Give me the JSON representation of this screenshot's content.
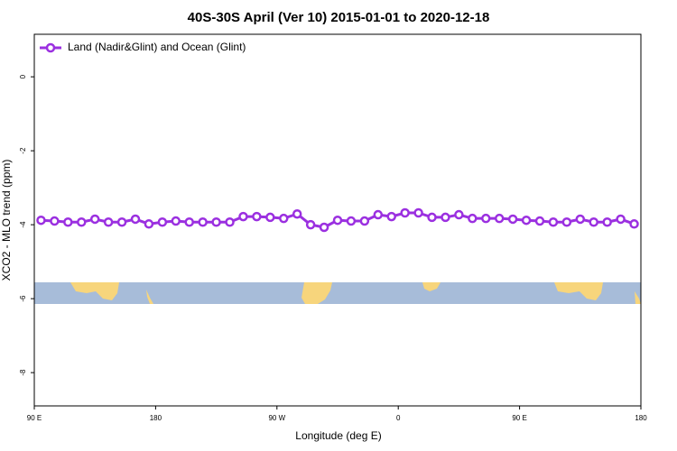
{
  "chart_data": {
    "type": "line",
    "title": "40S-30S April (Ver 10)   2015-01-01 to 2020-12-18",
    "xlabel": "Longitude (deg E)",
    "ylabel": "XCO2 - MLO trend (ppm)",
    "xlim": [
      90,
      540
    ],
    "ylim": [
      -8.9,
      1.15
    ],
    "xticks": [
      {
        "value": 90,
        "label": "90 E"
      },
      {
        "value": 180,
        "label": "180"
      },
      {
        "value": 270,
        "label": "90 W"
      },
      {
        "value": 360,
        "label": "0"
      },
      {
        "value": 450,
        "label": "90 E"
      },
      {
        "value": 540,
        "label": "180"
      }
    ],
    "yticks": [
      0,
      -2,
      -4,
      -6,
      -8
    ],
    "legend": "top-left",
    "x": [
      95,
      105,
      115,
      125,
      135,
      145,
      155,
      165,
      175,
      185,
      195,
      205,
      215,
      225,
      235,
      245,
      255,
      265,
      275,
      285,
      295,
      305,
      315,
      325,
      335,
      345,
      355,
      365,
      375,
      385,
      395,
      405,
      415,
      425,
      435,
      445,
      455,
      465,
      475,
      485,
      495,
      505,
      515,
      525,
      535
    ],
    "series": [
      {
        "name": "Land (Nadir&Glint) and Ocean (Glint)",
        "color": "#9b30e0",
        "values": [
          -3.88,
          -3.9,
          -3.93,
          -3.93,
          -3.85,
          -3.93,
          -3.93,
          -3.85,
          -3.98,
          -3.93,
          -3.9,
          -3.93,
          -3.93,
          -3.93,
          -3.93,
          -3.78,
          -3.78,
          -3.8,
          -3.83,
          -3.71,
          -4.0,
          -4.07,
          -3.88,
          -3.9,
          -3.9,
          -3.73,
          -3.78,
          -3.68,
          -3.68,
          -3.8,
          -3.8,
          -3.73,
          -3.83,
          -3.83,
          -3.83,
          -3.85,
          -3.88,
          -3.9,
          -3.93,
          -3.93,
          -3.85,
          -3.93,
          -3.93,
          -3.85,
          -3.98
        ]
      }
    ]
  }
}
